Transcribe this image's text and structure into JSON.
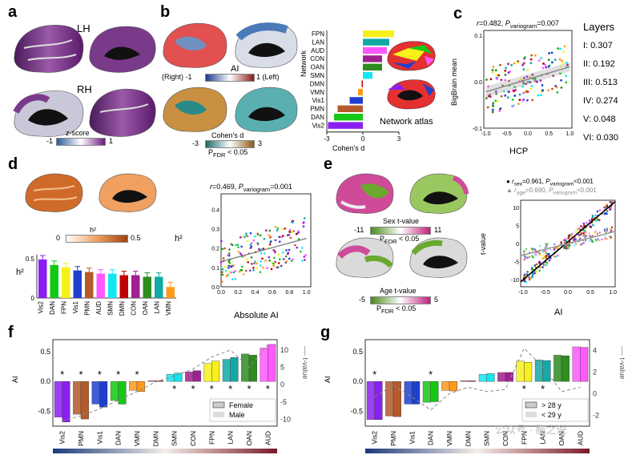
{
  "panels": {
    "a": {
      "letter": "a",
      "hemi_left": "LH",
      "hemi_right": "RH",
      "colorbar": {
        "title": "z-score",
        "min": "-1",
        "max": "1"
      }
    },
    "b": {
      "letter": "b",
      "ai_title": "AI",
      "ai_left": "(Right) -1",
      "ai_right": "1 (Left)",
      "cohen_title": "Cohen's d",
      "cohen_min": "-3",
      "cohen_max": "3",
      "pfdr": "P<sub>FDR</sub> < 0.05",
      "network_axis": "Network",
      "cohen_axis": "Cohen's d",
      "atlas_title": "Network atlas",
      "xticks": [
        "-3",
        "0",
        "3"
      ]
    },
    "c": {
      "letter": "c",
      "stat": "r=0.482, P_variogram=0.007",
      "xlabel": "HCP",
      "ylabel": "BigBrain mean",
      "xticks": [
        "-1.0",
        "-0.5",
        "0.0",
        "0.5",
        "1.0"
      ],
      "yticks": [
        "0.1",
        "0.0",
        "-0.1"
      ],
      "layers_title": "Layers",
      "layers": [
        {
          "label": "I: 0.307"
        },
        {
          "label": "II: 0.192"
        },
        {
          "label": "III: 0.513"
        },
        {
          "label": "IV: 0.274"
        },
        {
          "label": "V: 0.048"
        },
        {
          "label": "VI: 0.030"
        }
      ]
    },
    "d": {
      "letter": "d",
      "h2_label": "h²",
      "h2_min": "0",
      "h2_max": "0.5",
      "stat": "r=0.469, P_variogram=0.001",
      "xlabel": "Absolute AI",
      "ylabel": "h²",
      "xticks": [
        "0.0",
        "0.2",
        "0.4",
        "0.6",
        "0.8",
        "1.0"
      ],
      "yticks": [
        "0.0",
        "0.1",
        "0.2",
        "0.3",
        "0.4"
      ],
      "bar_yticks": [
        "0.5",
        "0"
      ]
    },
    "e": {
      "letter": "e",
      "sex_title": "Sex t-value",
      "sex_min": "-11",
      "sex_max": "11",
      "age_title": "Age t-value",
      "age_min": "-5",
      "age_max": "5",
      "pfdr": "P<sub>FDR</sub> < 0.05",
      "stat_sex": "r_sex=0.961, P_variogram<0.001",
      "stat_age": "r_age=0.690, P_variogram<0.001",
      "xlabel": "AI",
      "ylabel": "t-value",
      "xticks": [
        "-1.0",
        "-0.5",
        "0.0",
        "0.5",
        "1.0"
      ],
      "yticks": [
        "10",
        "5",
        "0",
        "-5",
        "-10"
      ]
    },
    "f": {
      "letter": "f",
      "ylabel": "AI",
      "ylabel_right": "---- t-value",
      "yticks": [
        "0.5",
        "0.0",
        "-0.5"
      ],
      "yticks_right": [
        "10",
        "5",
        "0",
        "-5",
        "-10"
      ],
      "legend": [
        "Female",
        "Male"
      ]
    },
    "g": {
      "letter": "g",
      "ylabel": "AI",
      "ylabel_right": "---- t-value",
      "yticks": [
        "0.5",
        "0.0",
        "-0.5"
      ],
      "yticks_right": [
        "4",
        "2",
        "0",
        "-2"
      ],
      "legend": [
        "> 28 y",
        "< 29 y"
      ]
    },
    "watermark": "公众号 · 脑之说"
  },
  "chart_data": [
    {
      "id": "b_network_bar",
      "type": "bar",
      "orientation": "horizontal",
      "categories": [
        "FPN",
        "LAN",
        "AUD",
        "CON",
        "OAN",
        "SMN",
        "DMN",
        "VMN",
        "Vis1",
        "PMN",
        "DAN",
        "Vis2"
      ],
      "values": [
        2.6,
        2.2,
        2.0,
        1.6,
        1.6,
        0.8,
        -0.1,
        -0.4,
        -1.1,
        -2.1,
        -2.4,
        -2.9
      ],
      "colors": [
        "#f7f01b",
        "#12a9a5",
        "#ff58ff",
        "#a0208f",
        "#2f8c1f",
        "#12e6f0",
        "#c00000",
        "#ff9a1a",
        "#1f3fcf",
        "#b55a2a",
        "#14c814",
        "#8a1ff0"
      ],
      "xlabel": "Cohen's d",
      "ylabel": "Network",
      "xlim": [
        -3,
        3
      ]
    },
    {
      "id": "d_h2_bar",
      "type": "bar",
      "categories": [
        "Vis2",
        "DAN",
        "FPN",
        "Vis1",
        "PMN",
        "AUD",
        "SMN",
        "DMN",
        "CON",
        "OAN",
        "LAN",
        "VMN"
      ],
      "values": [
        0.49,
        0.42,
        0.39,
        0.35,
        0.33,
        0.31,
        0.31,
        0.29,
        0.29,
        0.27,
        0.27,
        0.14
      ],
      "errors": [
        0.05,
        0.05,
        0.05,
        0.05,
        0.05,
        0.05,
        0.05,
        0.05,
        0.05,
        0.05,
        0.05,
        0.06
      ],
      "colors": [
        "#8a1ff0",
        "#14c814",
        "#f7f01b",
        "#1f3fcf",
        "#b55a2a",
        "#ff58ff",
        "#12e6f0",
        "#c00000",
        "#a0208f",
        "#2f8c1f",
        "#12a9a5",
        "#ff9a1a"
      ],
      "ylabel": "h²",
      "ylim": [
        0,
        0.55
      ]
    },
    {
      "id": "f_sex_bar",
      "type": "bar",
      "categories": [
        "Vis2",
        "PMN",
        "Vis1",
        "DAN",
        "VMN",
        "DMN",
        "SMN",
        "CON",
        "FPN",
        "LAN",
        "OAN",
        "AUD"
      ],
      "series": [
        {
          "name": "Female",
          "values": [
            -0.6,
            -0.55,
            -0.38,
            -0.32,
            -0.15,
            0.01,
            0.12,
            0.16,
            0.3,
            0.37,
            0.46,
            0.56
          ]
        },
        {
          "name": "Male",
          "values": [
            -0.68,
            -0.63,
            -0.43,
            -0.38,
            -0.17,
            0.01,
            0.14,
            0.18,
            0.34,
            0.4,
            0.44,
            0.62
          ]
        }
      ],
      "tvalues": [
        -10.5,
        -9.0,
        -7.0,
        -4.5,
        -2.0,
        0.8,
        2.5,
        4.5,
        8.0,
        10.0,
        5.0,
        11.5
      ],
      "significant": [
        true,
        true,
        true,
        true,
        true,
        false,
        true,
        true,
        true,
        true,
        true,
        true
      ],
      "colors": [
        "#8a1ff0",
        "#b55a2a",
        "#1f3fcf",
        "#14c814",
        "#ff9a1a",
        "#c00000",
        "#12e6f0",
        "#a0208f",
        "#f7f01b",
        "#12a9a5",
        "#2f8c1f",
        "#ff58ff"
      ],
      "ylabel": "AI",
      "ylim": [
        -0.75,
        0.7
      ],
      "y2lim": [
        -12,
        13
      ]
    },
    {
      "id": "g_age_bar",
      "type": "bar",
      "categories": [
        "Vis2",
        "PMN",
        "Vis1",
        "DAN",
        "VMN",
        "DMN",
        "SMN",
        "CON",
        "FPN",
        "LAN",
        "OAN",
        "AUD"
      ],
      "series": [
        {
          "name": "> 28 y",
          "values": [
            -0.64,
            -0.58,
            -0.38,
            -0.35,
            -0.15,
            0.01,
            0.12,
            0.15,
            0.34,
            0.36,
            0.44,
            0.58
          ]
        },
        {
          "name": "< 29 y",
          "values": [
            -0.64,
            -0.59,
            -0.38,
            -0.34,
            -0.16,
            0.01,
            0.13,
            0.15,
            0.32,
            0.35,
            0.43,
            0.57
          ]
        }
      ],
      "tvalues": [
        -0.3,
        0.8,
        -0.3,
        -1.5,
        0.0,
        0.6,
        0.2,
        0.4,
        4.2,
        2.5,
        0.2,
        0.6
      ],
      "significant": [
        true,
        false,
        false,
        true,
        false,
        false,
        false,
        false,
        true,
        true,
        false,
        false
      ],
      "colors": [
        "#8a1ff0",
        "#b55a2a",
        "#1f3fcf",
        "#14c814",
        "#ff9a1a",
        "#c00000",
        "#12e6f0",
        "#a0208f",
        "#f7f01b",
        "#12a9a5",
        "#2f8c1f",
        "#ff58ff"
      ],
      "ylabel": "AI",
      "ylim": [
        -0.75,
        0.7
      ],
      "y2lim": [
        -3,
        5
      ]
    },
    {
      "id": "c_scatter",
      "type": "scatter",
      "xlabel": "HCP",
      "ylabel": "BigBrain mean",
      "xlim": [
        -1.05,
        1.05
      ],
      "ylim": [
        -0.1,
        0.11
      ],
      "fit": {
        "slope": 0.027,
        "intercept": 0.005
      }
    },
    {
      "id": "d_scatter",
      "type": "scatter",
      "xlabel": "Absolute AI",
      "ylabel": "h²",
      "xlim": [
        0,
        1.05
      ],
      "ylim": [
        0,
        0.48
      ],
      "fit": {
        "slope": 0.12,
        "intercept": 0.13
      }
    },
    {
      "id": "e_scatter",
      "type": "scatter",
      "xlabel": "AI",
      "ylabel": "t-value",
      "xlim": [
        -1.05,
        1.05
      ],
      "ylim": [
        -12,
        12
      ],
      "fit_sex": {
        "slope": 10.6,
        "intercept": 0.5
      },
      "fit_age": {
        "slope": 3.2,
        "intercept": 0.0
      }
    }
  ]
}
